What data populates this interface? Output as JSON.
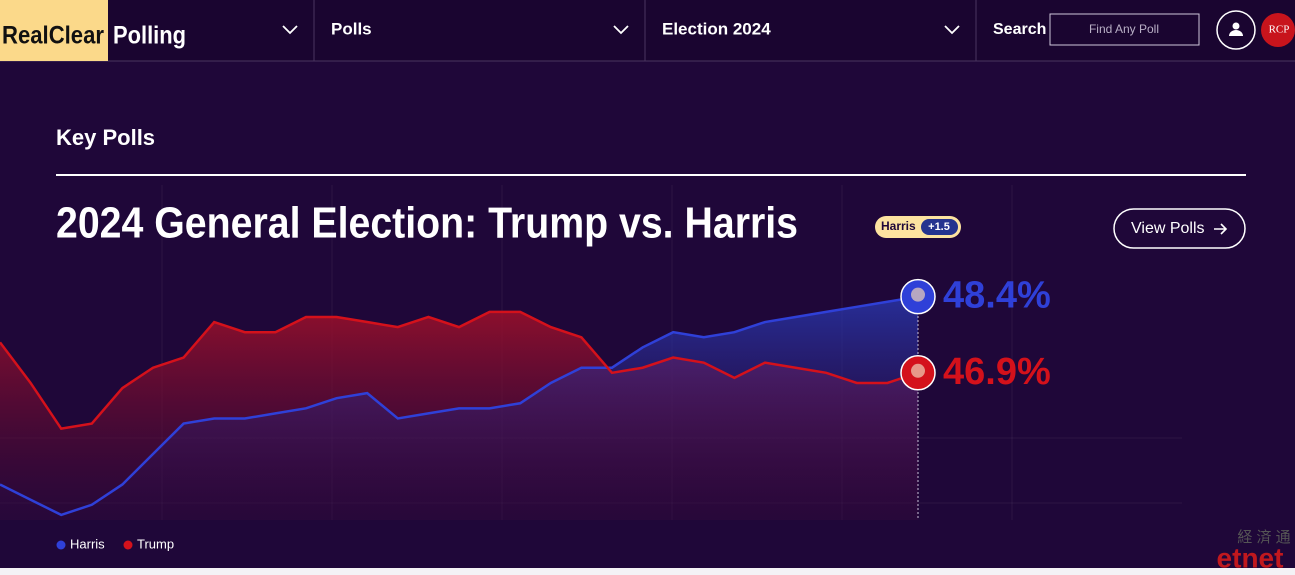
{
  "header": {
    "logo": [
      "RealClear",
      "Polling"
    ],
    "nav": [
      "Polls",
      "Election 2024"
    ],
    "search_label": "Search",
    "search_placeholder": "Find Any Poll",
    "badge": "RCP"
  },
  "section_title": "Key Polls",
  "chart_data": {
    "type": "line",
    "title": "2024 General Election: Trump vs. Harris",
    "lead": {
      "candidate": "Harris",
      "margin": "+1.5"
    },
    "button": "View Polls",
    "ylim": [
      44,
      50.6
    ],
    "series": [
      {
        "name": "Harris",
        "color": "#2f40d8",
        "values": [
          44.7,
          44.4,
          44.1,
          44.3,
          44.7,
          45.3,
          45.9,
          46.0,
          46.0,
          46.1,
          46.2,
          46.4,
          46.5,
          46.0,
          46.1,
          46.2,
          46.2,
          46.3,
          46.7,
          47.0,
          47.0,
          47.4,
          47.7,
          47.6,
          47.7,
          47.9,
          48.0,
          48.1,
          48.2,
          48.3,
          48.4
        ],
        "value_labels": [
          null,
          null,
          null,
          null,
          null,
          null,
          null,
          null,
          null,
          null,
          null,
          null,
          null,
          null,
          null,
          null,
          null,
          null,
          null,
          null,
          null,
          null,
          null,
          null,
          null,
          null,
          null,
          null,
          null,
          null,
          "48.4%"
        ]
      },
      {
        "name": "Trump",
        "color": "#d4111b",
        "values": [
          47.5,
          46.7,
          45.8,
          45.9,
          46.6,
          47.0,
          47.2,
          47.9,
          47.7,
          47.7,
          48.0,
          48.0,
          47.9,
          47.8,
          48.0,
          47.8,
          48.1,
          48.1,
          47.8,
          47.6,
          46.9,
          47.0,
          47.2,
          47.1,
          46.8,
          47.1,
          47.0,
          46.9,
          46.7,
          46.7,
          46.9
        ],
        "value_labels": [
          null,
          null,
          null,
          null,
          null,
          null,
          null,
          null,
          null,
          null,
          null,
          null,
          null,
          null,
          null,
          null,
          null,
          null,
          null,
          null,
          null,
          null,
          null,
          null,
          null,
          null,
          null,
          null,
          null,
          null,
          "46.9%"
        ]
      }
    ]
  },
  "watermark": [
    "経 済 通",
    "etnet"
  ]
}
